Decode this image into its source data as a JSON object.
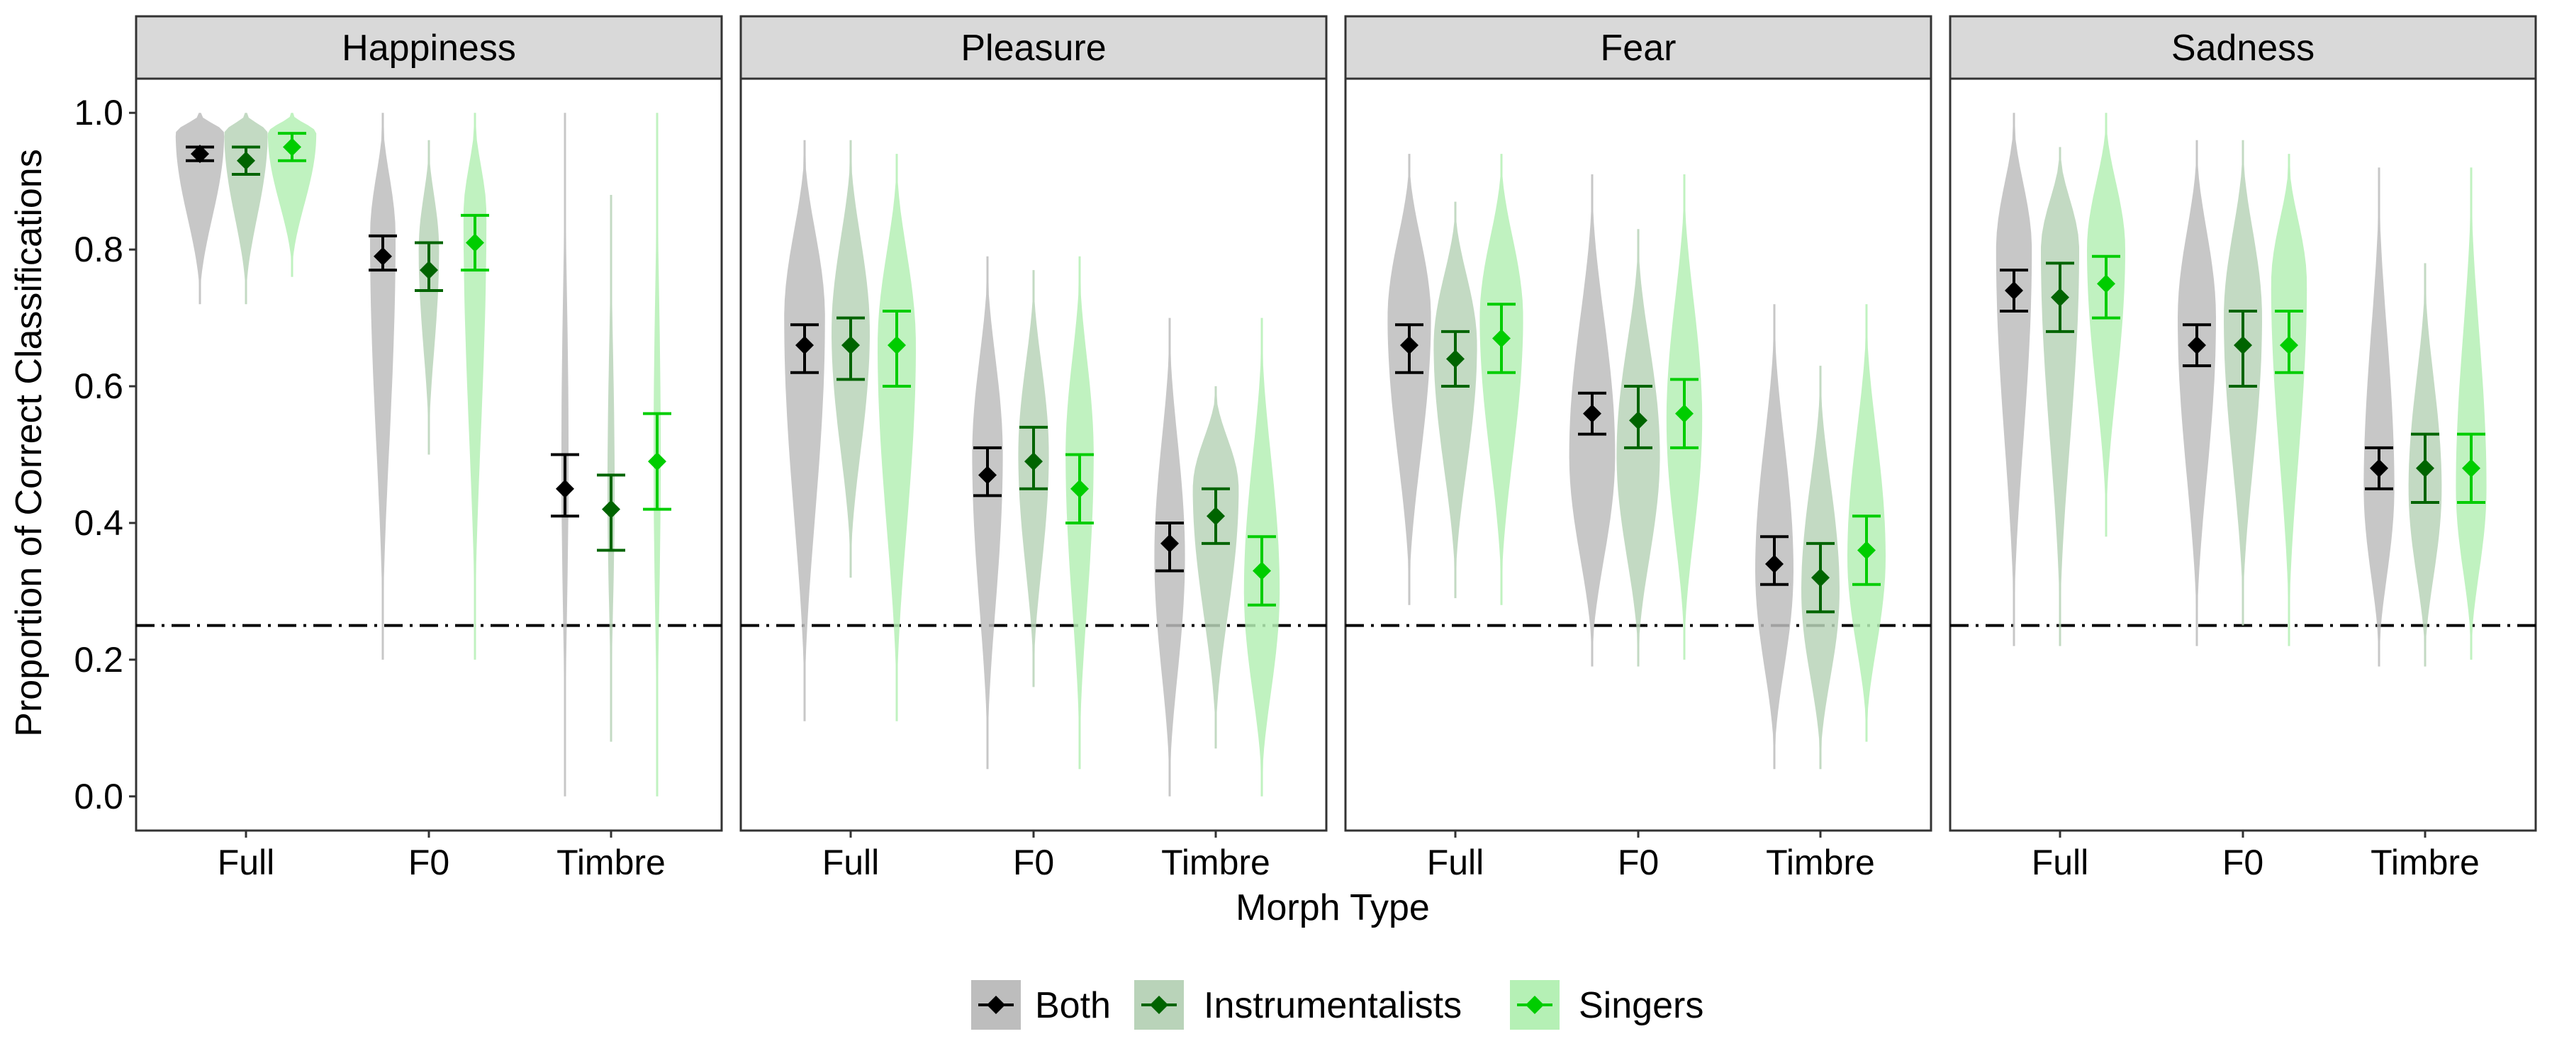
{
  "chart_data": {
    "type": "violin",
    "xlabel": "Morph Type",
    "ylabel": "Proportion of Correct Classifications",
    "ylim": [
      -0.05,
      1.05
    ],
    "yticks": [
      "0.0",
      "0.2",
      "0.4",
      "0.6",
      "0.8",
      "1.0"
    ],
    "categories": [
      "Full",
      "F0",
      "Timbre"
    ],
    "reference_line": {
      "y": 0.25,
      "style": "dot-dash"
    },
    "legend": {
      "position": "bottom",
      "entries": [
        "Both",
        "Instrumentalists",
        "Singers"
      ]
    },
    "colors": {
      "Both": {
        "point": "#000000",
        "violin": "#bdbdbd"
      },
      "Instrumentalists": {
        "point": "#006400",
        "violin": "#b9d3b9"
      },
      "Singers": {
        "point": "#00cd00",
        "violin": "#b5f0b5"
      }
    },
    "facets": [
      {
        "label": "Happiness",
        "groups": [
          {
            "category": "Full",
            "series": [
              {
                "name": "Both",
                "mean": 0.94,
                "lo": 0.93,
                "hi": 0.95,
                "violin": {
                  "min": 0.72,
                  "max": 1.0,
                  "mode": 0.97,
                  "width": 0.95
                }
              },
              {
                "name": "Instrumentalists",
                "mean": 0.93,
                "lo": 0.91,
                "hi": 0.95,
                "violin": {
                  "min": 0.72,
                  "max": 1.0,
                  "mode": 0.97,
                  "width": 0.85
                }
              },
              {
                "name": "Singers",
                "mean": 0.95,
                "lo": 0.93,
                "hi": 0.97,
                "violin": {
                  "min": 0.76,
                  "max": 1.0,
                  "mode": 0.97,
                  "width": 0.95
                }
              }
            ]
          },
          {
            "category": "F0",
            "series": [
              {
                "name": "Both",
                "mean": 0.79,
                "lo": 0.77,
                "hi": 0.82,
                "violin": {
                  "min": 0.2,
                  "max": 1.0,
                  "mode": 0.82,
                  "width": 0.5
                }
              },
              {
                "name": "Instrumentalists",
                "mean": 0.77,
                "lo": 0.74,
                "hi": 0.81,
                "violin": {
                  "min": 0.5,
                  "max": 0.96,
                  "mode": 0.8,
                  "width": 0.4
                }
              },
              {
                "name": "Singers",
                "mean": 0.81,
                "lo": 0.77,
                "hi": 0.85,
                "violin": {
                  "min": 0.2,
                  "max": 1.0,
                  "mode": 0.85,
                  "width": 0.45
                }
              }
            ]
          },
          {
            "category": "Timbre",
            "series": [
              {
                "name": "Both",
                "mean": 0.45,
                "lo": 0.41,
                "hi": 0.5,
                "violin": {
                  "min": 0.0,
                  "max": 1.0,
                  "mode": 0.5,
                  "width": 0.14
                }
              },
              {
                "name": "Instrumentalists",
                "mean": 0.42,
                "lo": 0.36,
                "hi": 0.47,
                "violin": {
                  "min": 0.08,
                  "max": 0.88,
                  "mode": 0.45,
                  "width": 0.14
                }
              },
              {
                "name": "Singers",
                "mean": 0.49,
                "lo": 0.42,
                "hi": 0.56,
                "violin": {
                  "min": 0.0,
                  "max": 1.0,
                  "mode": 0.5,
                  "width": 0.14
                }
              }
            ]
          }
        ]
      },
      {
        "label": "Pleasure",
        "groups": [
          {
            "category": "Full",
            "series": [
              {
                "name": "Both",
                "mean": 0.66,
                "lo": 0.62,
                "hi": 0.69,
                "violin": {
                  "min": 0.11,
                  "max": 0.96,
                  "mode": 0.7,
                  "width": 0.8
                }
              },
              {
                "name": "Instrumentalists",
                "mean": 0.66,
                "lo": 0.61,
                "hi": 0.7,
                "violin": {
                  "min": 0.32,
                  "max": 0.96,
                  "mode": 0.68,
                  "width": 0.75
                }
              },
              {
                "name": "Singers",
                "mean": 0.66,
                "lo": 0.6,
                "hi": 0.71,
                "violin": {
                  "min": 0.11,
                  "max": 0.94,
                  "mode": 0.66,
                  "width": 0.75
                }
              }
            ]
          },
          {
            "category": "F0",
            "series": [
              {
                "name": "Both",
                "mean": 0.47,
                "lo": 0.44,
                "hi": 0.51,
                "violin": {
                  "min": 0.04,
                  "max": 0.79,
                  "mode": 0.5,
                  "width": 0.6
                }
              },
              {
                "name": "Instrumentalists",
                "mean": 0.49,
                "lo": 0.45,
                "hi": 0.54,
                "violin": {
                  "min": 0.16,
                  "max": 0.77,
                  "mode": 0.5,
                  "width": 0.6
                }
              },
              {
                "name": "Singers",
                "mean": 0.45,
                "lo": 0.4,
                "hi": 0.5,
                "violin": {
                  "min": 0.04,
                  "max": 0.79,
                  "mode": 0.5,
                  "width": 0.55
                }
              }
            ]
          },
          {
            "category": "Timbre",
            "series": [
              {
                "name": "Both",
                "mean": 0.37,
                "lo": 0.33,
                "hi": 0.4,
                "violin": {
                  "min": 0.0,
                  "max": 0.7,
                  "mode": 0.35,
                  "width": 0.6
                }
              },
              {
                "name": "Instrumentalists",
                "mean": 0.41,
                "lo": 0.37,
                "hi": 0.45,
                "violin": {
                  "min": 0.07,
                  "max": 0.6,
                  "mode": 0.45,
                  "width": 0.9
                }
              },
              {
                "name": "Singers",
                "mean": 0.33,
                "lo": 0.28,
                "hi": 0.38,
                "violin": {
                  "min": 0.0,
                  "max": 0.7,
                  "mode": 0.3,
                  "width": 0.7
                }
              }
            ]
          }
        ]
      },
      {
        "label": "Fear",
        "groups": [
          {
            "category": "Full",
            "series": [
              {
                "name": "Both",
                "mean": 0.66,
                "lo": 0.62,
                "hi": 0.69,
                "violin": {
                  "min": 0.28,
                  "max": 0.94,
                  "mode": 0.7,
                  "width": 0.85
                }
              },
              {
                "name": "Instrumentalists",
                "mean": 0.64,
                "lo": 0.6,
                "hi": 0.68,
                "violin": {
                  "min": 0.29,
                  "max": 0.87,
                  "mode": 0.66,
                  "width": 0.85
                }
              },
              {
                "name": "Singers",
                "mean": 0.67,
                "lo": 0.62,
                "hi": 0.72,
                "violin": {
                  "min": 0.28,
                  "max": 0.94,
                  "mode": 0.7,
                  "width": 0.85
                }
              }
            ]
          },
          {
            "category": "F0",
            "series": [
              {
                "name": "Both",
                "mean": 0.56,
                "lo": 0.53,
                "hi": 0.59,
                "violin": {
                  "min": 0.19,
                  "max": 0.91,
                  "mode": 0.5,
                  "width": 0.9
                }
              },
              {
                "name": "Instrumentalists",
                "mean": 0.55,
                "lo": 0.51,
                "hi": 0.6,
                "violin": {
                  "min": 0.19,
                  "max": 0.83,
                  "mode": 0.5,
                  "width": 0.85
                }
              },
              {
                "name": "Singers",
                "mean": 0.56,
                "lo": 0.51,
                "hi": 0.61,
                "violin": {
                  "min": 0.2,
                  "max": 0.91,
                  "mode": 0.55,
                  "width": 0.7
                }
              }
            ]
          },
          {
            "category": "Timbre",
            "series": [
              {
                "name": "Both",
                "mean": 0.34,
                "lo": 0.31,
                "hi": 0.38,
                "violin": {
                  "min": 0.04,
                  "max": 0.72,
                  "mode": 0.33,
                  "width": 0.75
                }
              },
              {
                "name": "Instrumentalists",
                "mean": 0.32,
                "lo": 0.27,
                "hi": 0.37,
                "violin": {
                  "min": 0.04,
                  "max": 0.63,
                  "mode": 0.3,
                  "width": 0.75
                }
              },
              {
                "name": "Singers",
                "mean": 0.36,
                "lo": 0.31,
                "hi": 0.41,
                "violin": {
                  "min": 0.08,
                  "max": 0.72,
                  "mode": 0.35,
                  "width": 0.75
                }
              }
            ]
          }
        ]
      },
      {
        "label": "Sadness",
        "groups": [
          {
            "category": "Full",
            "series": [
              {
                "name": "Both",
                "mean": 0.74,
                "lo": 0.71,
                "hi": 0.77,
                "violin": {
                  "min": 0.22,
                  "max": 1.0,
                  "mode": 0.8,
                  "width": 0.7
                }
              },
              {
                "name": "Instrumentalists",
                "mean": 0.73,
                "lo": 0.68,
                "hi": 0.78,
                "violin": {
                  "min": 0.22,
                  "max": 0.95,
                  "mode": 0.8,
                  "width": 0.75
                }
              },
              {
                "name": "Singers",
                "mean": 0.75,
                "lo": 0.7,
                "hi": 0.79,
                "violin": {
                  "min": 0.38,
                  "max": 1.0,
                  "mode": 0.8,
                  "width": 0.75
                }
              }
            ]
          },
          {
            "category": "F0",
            "series": [
              {
                "name": "Both",
                "mean": 0.66,
                "lo": 0.63,
                "hi": 0.69,
                "violin": {
                  "min": 0.22,
                  "max": 0.96,
                  "mode": 0.7,
                  "width": 0.75
                }
              },
              {
                "name": "Instrumentalists",
                "mean": 0.66,
                "lo": 0.6,
                "hi": 0.71,
                "violin": {
                  "min": 0.25,
                  "max": 0.96,
                  "mode": 0.7,
                  "width": 0.75
                }
              },
              {
                "name": "Singers",
                "mean": 0.66,
                "lo": 0.62,
                "hi": 0.71,
                "violin": {
                  "min": 0.22,
                  "max": 0.94,
                  "mode": 0.75,
                  "width": 0.7
                }
              }
            ]
          },
          {
            "category": "Timbre",
            "series": [
              {
                "name": "Both",
                "mean": 0.48,
                "lo": 0.45,
                "hi": 0.51,
                "violin": {
                  "min": 0.19,
                  "max": 0.92,
                  "mode": 0.45,
                  "width": 0.6
                }
              },
              {
                "name": "Instrumentalists",
                "mean": 0.48,
                "lo": 0.43,
                "hi": 0.53,
                "violin": {
                  "min": 0.19,
                  "max": 0.78,
                  "mode": 0.45,
                  "width": 0.65
                }
              },
              {
                "name": "Singers",
                "mean": 0.48,
                "lo": 0.43,
                "hi": 0.53,
                "violin": {
                  "min": 0.2,
                  "max": 0.92,
                  "mode": 0.45,
                  "width": 0.6
                }
              }
            ]
          }
        ]
      }
    ]
  }
}
